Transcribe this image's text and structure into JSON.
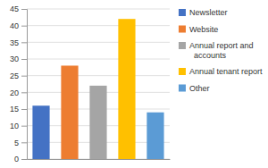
{
  "chart_data": {
    "type": "bar",
    "categories": [
      "Newsletter",
      "Website",
      "Annual report and\n  accounts",
      "Annual tenant report",
      "Other"
    ],
    "values": [
      16,
      28,
      22,
      42,
      14
    ],
    "colors": [
      "#4472c4",
      "#ed7d31",
      "#a5a5a5",
      "#ffc000",
      "#5b9bd5"
    ],
    "ylim": [
      0,
      45
    ],
    "yticks": [
      0,
      5,
      10,
      15,
      20,
      25,
      30,
      35,
      40,
      45
    ],
    "grid": true,
    "legend": "right",
    "tick_labels": "y"
  }
}
